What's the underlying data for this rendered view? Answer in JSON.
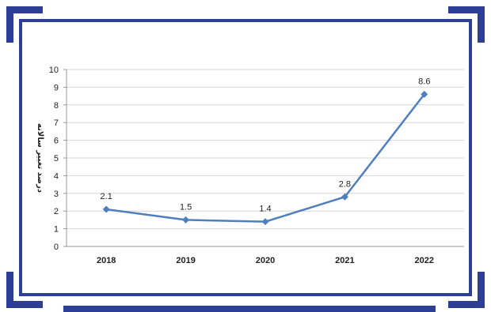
{
  "theme": {
    "frame_color": "#2c3f94",
    "line_color": "#4f7fbf",
    "grid_color": "#d6d6d6"
  },
  "chart_data": {
    "type": "line",
    "title": "",
    "xlabel": "",
    "ylabel": "درصد تغییر سالانه",
    "categories": [
      "2018",
      "2019",
      "2020",
      "2021",
      "2022"
    ],
    "series": [
      {
        "values": [
          2.1,
          1.5,
          1.4,
          2.8,
          8.6
        ]
      }
    ],
    "data_labels": [
      "2.1",
      "1.5",
      "1.4",
      "2.8",
      "8.6"
    ],
    "ylim": [
      0,
      10
    ],
    "yticks": [
      "0",
      "1",
      "2",
      "3",
      "4",
      "5",
      "6",
      "7",
      "8",
      "9",
      "10"
    ],
    "grid": true,
    "legend": "none",
    "marker": "diamond"
  }
}
